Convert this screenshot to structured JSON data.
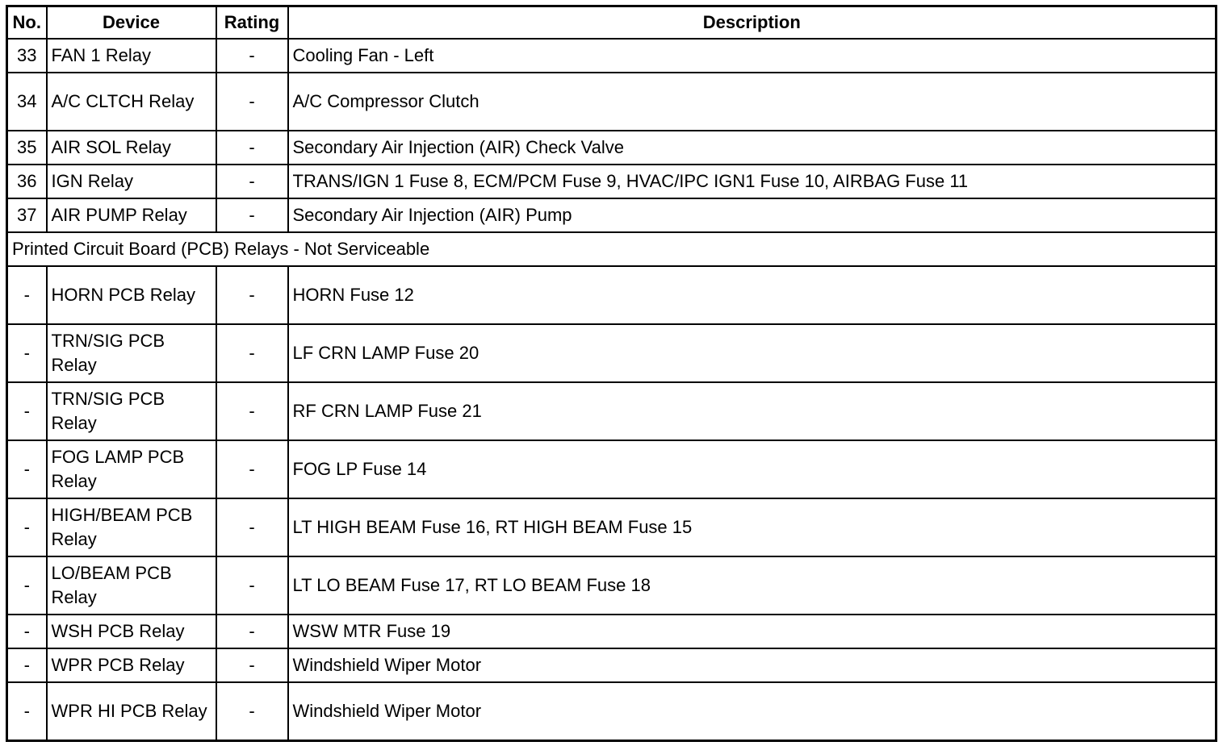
{
  "headers": [
    "No.",
    "Device",
    "Rating",
    "Description"
  ],
  "rows_top": [
    {
      "no": "33",
      "device": "FAN 1 Relay",
      "rating": "-",
      "description": "Cooling Fan - Left"
    },
    {
      "no": "34",
      "device": "A/C CLTCH Relay",
      "rating": "-",
      "description": "A/C Compressor Clutch"
    },
    {
      "no": "35",
      "device": "AIR SOL Relay",
      "rating": "-",
      "description": "Secondary Air Injection (AIR) Check Valve"
    },
    {
      "no": "36",
      "device": "IGN Relay",
      "rating": "-",
      "description": "TRANS/IGN 1 Fuse 8, ECM/PCM Fuse 9, HVAC/IPC IGN1 Fuse 10, AIRBAG Fuse 11"
    },
    {
      "no": "37",
      "device": "AIR PUMP Relay",
      "rating": "-",
      "description": "Secondary Air Injection (AIR) Pump"
    }
  ],
  "section_title": "Printed Circuit Board (PCB) Relays - Not Serviceable",
  "rows_pcb": [
    {
      "no": "-",
      "device": "HORN PCB Relay",
      "rating": "-",
      "description": "HORN Fuse 12"
    },
    {
      "no": "-",
      "device": "TRN/SIG PCB Relay",
      "rating": "-",
      "description": "LF CRN LAMP Fuse 20"
    },
    {
      "no": "-",
      "device": "TRN/SIG PCB Relay",
      "rating": "-",
      "description": "RF CRN LAMP Fuse 21"
    },
    {
      "no": "-",
      "device": "FOG LAMP PCB Relay",
      "rating": "-",
      "description": "FOG LP Fuse 14"
    },
    {
      "no": "-",
      "device": "HIGH/BEAM PCB Relay",
      "rating": "-",
      "description": "LT HIGH BEAM Fuse 16, RT HIGH BEAM Fuse 15"
    },
    {
      "no": "-",
      "device": "LO/BEAM PCB Relay",
      "rating": "-",
      "description": "LT LO BEAM Fuse 17, RT LO BEAM Fuse 18"
    },
    {
      "no": "-",
      "device": "WSH PCB Relay",
      "rating": "-",
      "description": "WSW MTR Fuse 19"
    },
    {
      "no": "-",
      "device": "WPR PCB Relay",
      "rating": "-",
      "description": "Windshield Wiper Motor"
    },
    {
      "no": "-",
      "device": "WPR HI PCB Relay",
      "rating": "-",
      "description": "Windshield Wiper Motor"
    }
  ]
}
